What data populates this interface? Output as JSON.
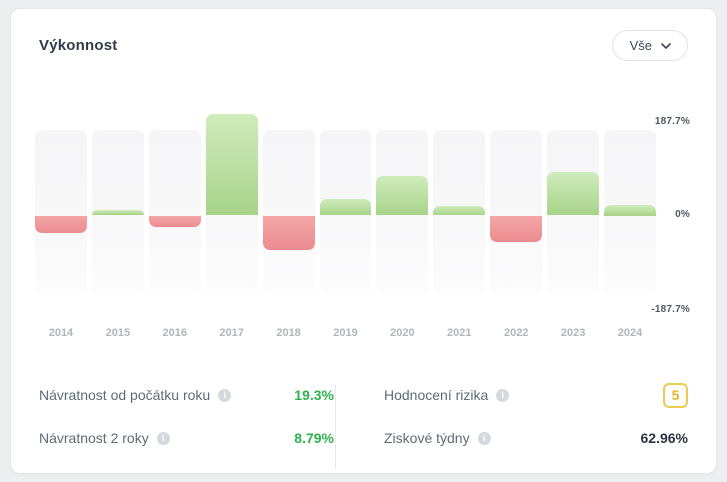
{
  "header": {
    "title": "Výkonnost",
    "range_selected": "Vše"
  },
  "chart_data": {
    "type": "bar",
    "title": "Výkonnost",
    "categories": [
      "2014",
      "2015",
      "2016",
      "2017",
      "2018",
      "2019",
      "2020",
      "2021",
      "2022",
      "2023",
      "2024"
    ],
    "values": [
      -32,
      10,
      -21,
      187.7,
      -63,
      30,
      73,
      18,
      -49,
      80.5,
      19.3
    ],
    "unit": "%",
    "ylim": [
      -187.7,
      187.7
    ],
    "axis_max_label": "187.7%",
    "axis_zero_label": "0%",
    "axis_min_label": "-187.7%",
    "grid": "off",
    "legend": "none",
    "positive_color": "#a7d389",
    "negative_color": "#ec8b90",
    "track_color": "#f6f6f8"
  },
  "stats": {
    "left": [
      {
        "label": "Návratnost od počátku roku",
        "value": "19.3%"
      },
      {
        "label": "Návratnost 2 roky",
        "value": "8.79%"
      }
    ],
    "right": [
      {
        "label": "Hodnocení rizika",
        "value": "5"
      },
      {
        "label": "Ziskové týdny",
        "value": "62.96%"
      }
    ]
  },
  "colors": {
    "positive_value": "#2fb24c",
    "risk_badge_border": "#eccb52",
    "risk_badge_text": "#e3b62e",
    "card_background": "#ffffff",
    "page_background": "#edeef0"
  },
  "icons": {
    "info": "i",
    "chevron_down": "v"
  }
}
